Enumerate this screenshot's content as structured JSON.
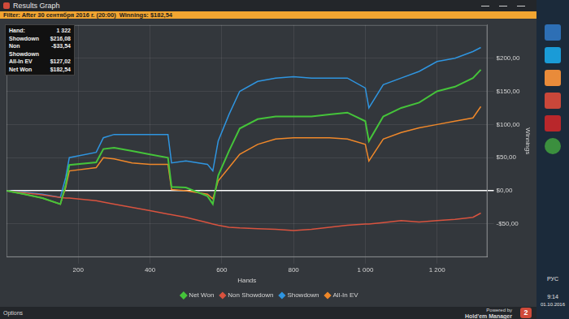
{
  "chart_data": {
    "type": "line",
    "x_label": "Hands",
    "y_label": "Winnings",
    "x": [
      0,
      50,
      100,
      150,
      165,
      175,
      250,
      270,
      300,
      350,
      400,
      450,
      460,
      500,
      560,
      575,
      590,
      620,
      650,
      700,
      750,
      800,
      850,
      900,
      950,
      1000,
      1010,
      1050,
      1100,
      1150,
      1200,
      1250,
      1300,
      1322
    ],
    "series": [
      {
        "name": "Net Won",
        "color": "#45c43a",
        "values": [
          0,
          -5,
          -11,
          -20,
          9,
          39,
          43,
          63,
          65,
          60,
          55,
          50,
          6,
          5,
          -8,
          -20,
          23,
          60,
          94,
          108,
          112,
          112,
          112,
          115,
          118,
          105,
          75,
          112,
          125,
          133,
          150,
          157,
          170,
          182.54
        ]
      },
      {
        "name": "Non Showdown",
        "color": "#d9533f",
        "values": [
          0,
          -3,
          -6,
          -10,
          -11,
          -11,
          -15,
          -17,
          -20,
          -25,
          -30,
          -35,
          -36,
          -40,
          -48,
          -50,
          -52,
          -55,
          -56,
          -57,
          -58,
          -60,
          -58,
          -55,
          -52,
          -50,
          -50,
          -48,
          -45,
          -47,
          -45,
          -43,
          -40,
          -33.54
        ]
      },
      {
        "name": "Showdown",
        "color": "#2f95e0",
        "values": [
          0,
          -2,
          -5,
          -10,
          20,
          50,
          58,
          80,
          85,
          85,
          85,
          85,
          42,
          45,
          40,
          30,
          75,
          115,
          150,
          165,
          170,
          172,
          170,
          170,
          170,
          155,
          125,
          160,
          170,
          180,
          195,
          200,
          210,
          216.08
        ]
      },
      {
        "name": "All-In EV",
        "color": "#f0882a",
        "values": [
          0,
          -5,
          -11,
          -20,
          5,
          30,
          35,
          50,
          48,
          42,
          40,
          40,
          2,
          0,
          -5,
          -12,
          15,
          35,
          55,
          70,
          78,
          80,
          80,
          80,
          78,
          70,
          45,
          78,
          88,
          95,
          100,
          105,
          110,
          127.02
        ]
      }
    ],
    "xlim": [
      0,
      1340
    ],
    "xticks": [
      200,
      400,
      600,
      800,
      {
        "value": 1000,
        "label": "1 000"
      },
      {
        "value": 1200,
        "label": "1 200"
      }
    ],
    "ylim": [
      -100,
      250
    ],
    "yticks": [
      {
        "value": -50,
        "label": "-$50,00"
      },
      {
        "value": 0,
        "label": "$0,00"
      },
      {
        "value": 50,
        "label": "$50,00"
      },
      {
        "value": 100,
        "label": "$100,00"
      },
      {
        "value": 150,
        "label": "$150,00"
      },
      {
        "value": 200,
        "label": "$200,00"
      }
    ],
    "grid": true,
    "legend": "bottom"
  },
  "window": {
    "title": "Results Graph",
    "filter": "Filter: After 30 сентября 2016 г. (20:00)",
    "winnings": "Winnings: $182,54",
    "stats": [
      [
        "Hand:",
        "1 322"
      ],
      [
        "Showdown",
        "$216,08"
      ],
      [
        "Non Showdown",
        "-$33,54"
      ],
      [
        "All-In EV",
        "$127,02"
      ],
      [
        "Net Won",
        "$182,54"
      ]
    ],
    "options": "Options",
    "powered_by": "Powered by",
    "brand": "Hold'em Manager",
    "brand_badge": "2"
  },
  "taskbar": {
    "language": "РУС",
    "time": "9:14",
    "date": "01.10.2016"
  }
}
